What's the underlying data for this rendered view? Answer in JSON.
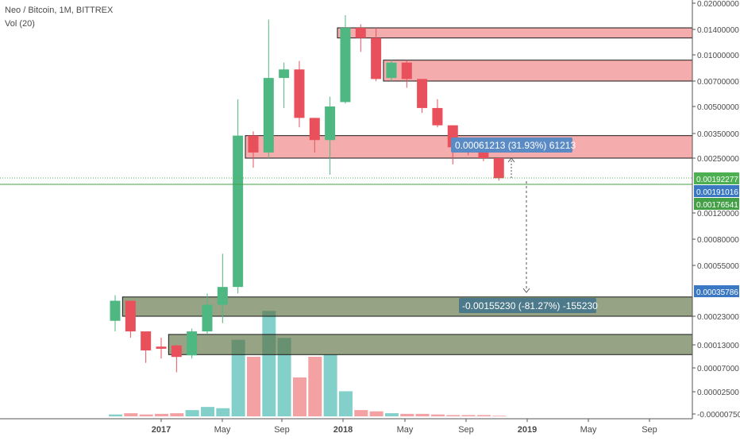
{
  "header": {
    "symbol_line": "Neo / Bitcoin, 1M, BITTREX",
    "volume_line": "Vol (20)"
  },
  "chart_data": {
    "type": "candlestick",
    "title": "Neo / Bitcoin, 1M, BITTREX",
    "scale": "log",
    "x_ticks": [
      "2017",
      "May",
      "Sep",
      "2018",
      "May",
      "Sep",
      "2019",
      "May",
      "Sep"
    ],
    "y_ticks": [
      "0.02000000",
      "0.01400000",
      "0.01000000",
      "0.00700000",
      "0.00500000",
      "0.00350000",
      "0.00250000",
      "0.00120000",
      "0.00080000",
      "0.00055000",
      "0.00023000",
      "0.00013000",
      "0.00007000",
      "0.00002500",
      "-0.00000750"
    ],
    "y_range": [
      -7.5e-06,
      0.02
    ],
    "price_labels": [
      {
        "text": "0.00192277",
        "color": "#4caf50"
      },
      {
        "text": "0.00191016",
        "color": "#3a78c3"
      },
      {
        "text": "0.00176541",
        "color": "#43a047"
      },
      {
        "text": "0.00035786",
        "color": "#3a78c3"
      }
    ],
    "zones": [
      {
        "color": "#f08080",
        "from": "2018-01",
        "bottom": 0.0125,
        "top": 0.0143
      },
      {
        "color": "#f08080",
        "from": "2018-04",
        "bottom": 0.007,
        "top": 0.0093
      },
      {
        "color": "#f08080",
        "from": "2017-07",
        "bottom": 0.0025,
        "top": 0.0034
      },
      {
        "color": "#6b8e4e",
        "from": "2016-11",
        "bottom": 0.00023,
        "top": 0.00032
      },
      {
        "color": "#6b8e4e",
        "from": "2017-02",
        "bottom": 0.0001,
        "top": 0.00016
      }
    ],
    "measure_labels": [
      {
        "text": "0.00061213 (31.93%) 61213",
        "color": "#5b8bc5"
      },
      {
        "text": "-0.00155230 (-81.27%) -155230",
        "color": "#4d7a8a"
      }
    ],
    "colors": {
      "up": "#4fb882",
      "down": "#e8505b",
      "up_volume": "#83cfc9",
      "down_volume": "#f3a1a3"
    },
    "candles": [
      {
        "month": "2016-10",
        "open": 0.00021,
        "high": 0.00033,
        "low": 0.00017,
        "close": 0.0003
      },
      {
        "month": "2016-11",
        "open": 0.0003,
        "high": 0.0003,
        "low": 0.00015,
        "close": 0.00017
      },
      {
        "month": "2016-12",
        "open": 0.00017,
        "high": 0.00017,
        "low": 8e-05,
        "close": 0.000112
      },
      {
        "month": "2017-01",
        "open": 0.000124,
        "high": 0.00015,
        "low": 9e-05,
        "close": 0.000117
      },
      {
        "month": "2017-02",
        "open": 0.000128,
        "high": 0.00013,
        "low": 5.8e-05,
        "close": 9.4e-05
      },
      {
        "month": "2017-03",
        "open": 9.8e-05,
        "high": 0.00018,
        "low": 9e-05,
        "close": 0.00017
      },
      {
        "month": "2017-04",
        "open": 0.00017,
        "high": 0.00034,
        "low": 0.00016,
        "close": 0.00028
      },
      {
        "month": "2017-05",
        "open": 0.00028,
        "high": 0.00065,
        "low": 0.0002,
        "close": 0.00038
      },
      {
        "month": "2017-06",
        "open": 0.00038,
        "high": 0.0055,
        "low": 0.00034,
        "close": 0.0034
      },
      {
        "month": "2017-07",
        "open": 0.0034,
        "high": 0.0036,
        "low": 0.0022,
        "close": 0.0027
      },
      {
        "month": "2017-08",
        "open": 0.0027,
        "high": 0.016,
        "low": 0.0025,
        "close": 0.0073
      },
      {
        "month": "2017-09",
        "open": 0.0073,
        "high": 0.009,
        "low": 0.0049,
        "close": 0.0082
      },
      {
        "month": "2017-10",
        "open": 0.0082,
        "high": 0.0092,
        "low": 0.0038,
        "close": 0.0043
      },
      {
        "month": "2017-11",
        "open": 0.0043,
        "high": 0.0043,
        "low": 0.0027,
        "close": 0.0032
      },
      {
        "month": "2017-12",
        "open": 0.0032,
        "high": 0.0057,
        "low": 0.002,
        "close": 0.005
      },
      {
        "month": "2018-01",
        "open": 0.0053,
        "high": 0.017,
        "low": 0.0052,
        "close": 0.0143
      },
      {
        "month": "2018-02",
        "open": 0.0143,
        "high": 0.015,
        "low": 0.0104,
        "close": 0.0125
      },
      {
        "month": "2018-03",
        "open": 0.0125,
        "high": 0.0143,
        "low": 0.007,
        "close": 0.0072
      },
      {
        "month": "2018-04",
        "open": 0.0073,
        "high": 0.0093,
        "low": 0.007,
        "close": 0.009
      },
      {
        "month": "2018-05",
        "open": 0.009,
        "high": 0.0093,
        "low": 0.0064,
        "close": 0.0072
      },
      {
        "month": "2018-06",
        "open": 0.0072,
        "high": 0.0072,
        "low": 0.0046,
        "close": 0.0049
      },
      {
        "month": "2018-07",
        "open": 0.0049,
        "high": 0.0055,
        "low": 0.0038,
        "close": 0.0039
      },
      {
        "month": "2018-08",
        "open": 0.0039,
        "high": 0.0039,
        "low": 0.0023,
        "close": 0.0029
      },
      {
        "month": "2018-09",
        "open": 0.0029,
        "high": 0.0032,
        "low": 0.0026,
        "close": 0.0028
      },
      {
        "month": "2018-10",
        "open": 0.0028,
        "high": 0.0031,
        "low": 0.0024,
        "close": 0.0025
      },
      {
        "month": "2018-11",
        "open": 0.0025,
        "high": 0.0025,
        "low": 0.00185,
        "close": 0.00191
      }
    ],
    "volume": [
      3,
      5,
      3,
      4,
      5,
      10,
      15,
      13,
      122,
      95,
      168,
      125,
      62,
      95,
      98,
      40,
      10,
      8,
      5,
      4,
      4,
      3,
      2,
      2,
      2,
      1
    ]
  }
}
